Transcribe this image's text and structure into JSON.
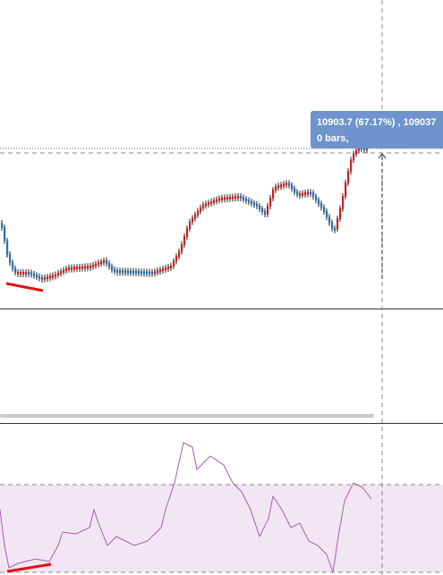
{
  "tooltip": {
    "line1": "10903.7 (67.17%) , 109037",
    "line2": "0 bars,"
  }
}
